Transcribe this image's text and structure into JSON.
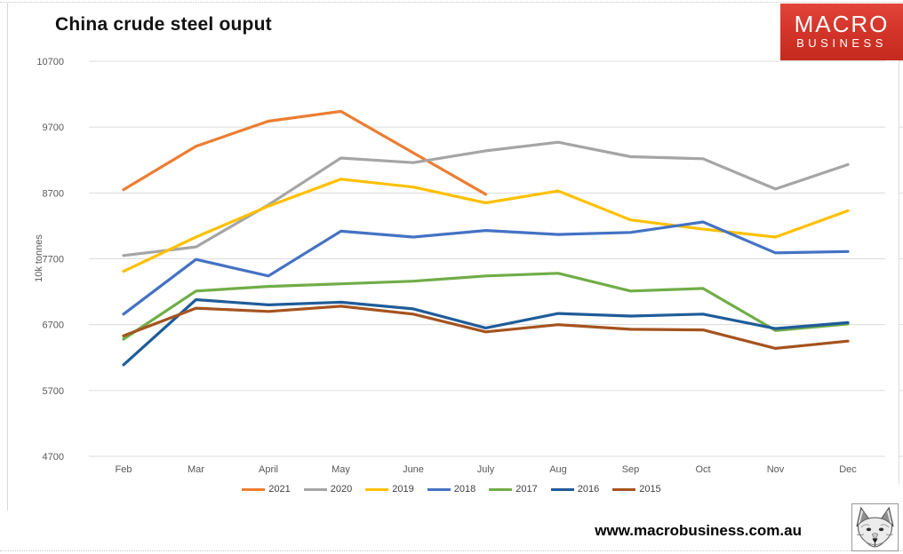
{
  "page": {
    "title": "China crude steel ouput",
    "website": "www.macrobusiness.com.au",
    "logo": {
      "line1": "MACRO",
      "line2": "BUSINESS",
      "bg_color": "#d5352a",
      "text_color": "#ffffff"
    },
    "fox_icon": "fox-head-sketch"
  },
  "chart_data": {
    "type": "line",
    "title": "China crude steel ouput",
    "xlabel": "",
    "ylabel": "10k tonnes",
    "ylim": [
      4700,
      10700
    ],
    "yticks": [
      10700,
      9700,
      8700,
      7700,
      6700,
      5700,
      4700
    ],
    "grid": "horizontal",
    "gridline_color": "#d9dcd9",
    "tick_label_color": "#595959",
    "legend_position": "bottom",
    "categories": [
      "Feb",
      "Mar",
      "April",
      "May",
      "June",
      "July",
      "Aug",
      "Sep",
      "Oct",
      "Nov",
      "Dec"
    ],
    "series": [
      {
        "name": "2021",
        "color": "#ED7D31",
        "values": [
          8750,
          9410,
          9790,
          9940,
          9310,
          8680,
          null,
          null,
          null,
          null,
          null
        ]
      },
      {
        "name": "2020",
        "color": "#A5A5A5",
        "values": [
          7750,
          7880,
          8520,
          9230,
          9160,
          9340,
          9470,
          9250,
          9220,
          8760,
          9130
        ]
      },
      {
        "name": "2019",
        "color": "#FFC000",
        "values": [
          7510,
          8030,
          8500,
          8910,
          8790,
          8550,
          8730,
          8290,
          8150,
          8030,
          8430
        ]
      },
      {
        "name": "2018",
        "color": "#4472C4",
        "values": [
          6860,
          7690,
          7440,
          8120,
          8030,
          8130,
          8070,
          8100,
          8260,
          7790,
          7810
        ]
      },
      {
        "name": "2017",
        "color": "#70AD47",
        "values": [
          6480,
          7210,
          7280,
          7320,
          7360,
          7440,
          7480,
          7210,
          7250,
          6610,
          6710
        ]
      },
      {
        "name": "2016",
        "color": "#1F5C99",
        "values": [
          6090,
          7080,
          7000,
          7040,
          6940,
          6650,
          6870,
          6830,
          6860,
          6640,
          6730
        ]
      },
      {
        "name": "2015",
        "color": "#A5531E",
        "values": [
          6530,
          6950,
          6900,
          6980,
          6860,
          6590,
          6700,
          6630,
          6620,
          6340,
          6450
        ]
      }
    ]
  }
}
